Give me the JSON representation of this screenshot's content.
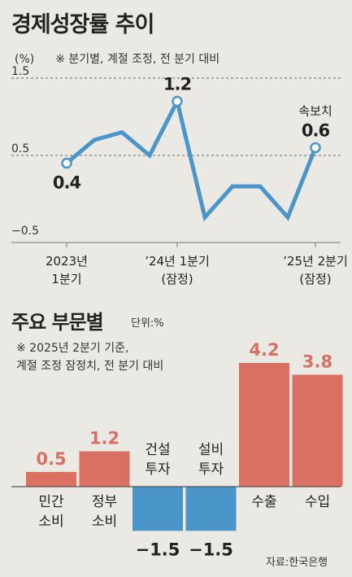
{
  "chart1": {
    "title": "경제성장률 추이",
    "unit": "(%)",
    "note": "※ 분기별, 계절 조정, 전 분기 대비",
    "chart_data": {
      "type": "line",
      "x": [
        "2023 1Q",
        "2023 2Q",
        "2023 3Q",
        "2023 4Q",
        "2024 1Q",
        "2024 2Q",
        "2024 3Q",
        "2024 4Q",
        "2025 1Q",
        "2025 2Q"
      ],
      "values": [
        0.4,
        0.7,
        0.8,
        0.5,
        1.2,
        -0.3,
        0.1,
        0.1,
        -0.3,
        0.6
      ],
      "ylim": [
        -0.5,
        1.5
      ],
      "yticks": [
        "1.5",
        "0.5",
        "−0.5"
      ],
      "xtick_labels": [
        {
          "index": 0,
          "line1": "2023년",
          "line2": "1분기"
        },
        {
          "index": 4,
          "line1": "’24년 1분기",
          "line2": "(잠정)"
        },
        {
          "index": 9,
          "line1": "’25년 2분기",
          "line2": "(잠정)"
        }
      ],
      "point_labels": [
        {
          "index": 0,
          "text": "0.4"
        },
        {
          "index": 4,
          "text": "1.2"
        },
        {
          "index": 9,
          "text": "0.6",
          "prefix": "속보치"
        }
      ],
      "grid": "dashed at 1.5 and 0.5",
      "line_color": "#4a95c9"
    }
  },
  "chart2": {
    "title": "주요 부문별",
    "unit": "단위:%",
    "note": "※ 2025년 2분기 기준,\n계절 조정 잠정치, 전 분기 대비",
    "chart_data": {
      "type": "bar",
      "categories": [
        "민간 소비",
        "정부 소비",
        "건설 투자",
        "설비 투자",
        "수출",
        "수입"
      ],
      "category_lines": [
        [
          "민간",
          "소비"
        ],
        [
          "정부",
          "소비"
        ],
        [
          "건설",
          "투자"
        ],
        [
          "설비",
          "투자"
        ],
        [
          "수출"
        ],
        [
          "수입"
        ]
      ],
      "values": [
        0.5,
        1.2,
        -1.5,
        -1.5,
        4.2,
        3.8
      ],
      "value_labels": [
        "0.5",
        "1.2",
        "−1.5",
        "−1.5",
        "4.2",
        "3.8"
      ],
      "positive_color": "#d97062",
      "negative_color": "#4a95c9"
    }
  },
  "source": "자료:한국은행"
}
